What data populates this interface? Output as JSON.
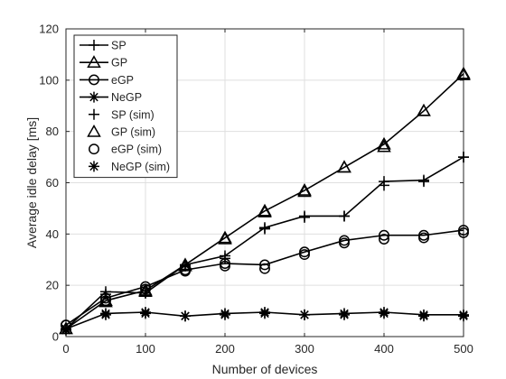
{
  "chart_data": {
    "type": "line",
    "xlabel": "Number of devices",
    "ylabel": "Average idle delay [ms]",
    "xlim": [
      0,
      500
    ],
    "ylim": [
      0,
      120
    ],
    "xticks": [
      0,
      100,
      200,
      300,
      400,
      500
    ],
    "yticks": [
      0,
      20,
      40,
      60,
      80,
      100,
      120
    ],
    "grid": true,
    "legend_position": "top-left",
    "x": [
      0,
      50,
      100,
      150,
      200,
      250,
      300,
      350,
      400,
      450,
      500
    ],
    "series": [
      {
        "name": "SP",
        "marker": "plus",
        "style": "line",
        "values": [
          3,
          17.5,
          17,
          28,
          31.5,
          42.5,
          47,
          47,
          60.5,
          61,
          70
        ]
      },
      {
        "name": "GP",
        "marker": "triangle",
        "style": "line",
        "values": [
          3,
          14,
          18,
          28,
          38.5,
          49,
          57,
          66,
          75,
          88,
          102.5
        ]
      },
      {
        "name": "eGP",
        "marker": "circle",
        "style": "line",
        "values": [
          4.5,
          15,
          19.5,
          26,
          28.5,
          28,
          33,
          37.5,
          39.5,
          39.5,
          41.5
        ]
      },
      {
        "name": "NeGP",
        "marker": "asterisk",
        "style": "line",
        "values": [
          3,
          9,
          9.5,
          8,
          9,
          9.5,
          8.5,
          9,
          9.5,
          8.5,
          8.5
        ]
      },
      {
        "name": "SP (sim)",
        "marker": "plus",
        "style": "markers",
        "values": [
          3,
          16.5,
          17,
          27.5,
          30.5,
          42,
          46.5,
          47,
          59,
          60.5,
          70
        ]
      },
      {
        "name": "GP (sim)",
        "marker": "triangle",
        "style": "markers",
        "values": [
          3,
          13.5,
          17.5,
          27.5,
          38,
          48.5,
          56.5,
          66,
          74,
          88,
          102
        ]
      },
      {
        "name": "eGP (sim)",
        "marker": "circle",
        "style": "markers",
        "values": [
          4.5,
          14,
          18.5,
          25.5,
          27.5,
          26.5,
          32,
          36.5,
          38,
          38.5,
          40.5
        ]
      },
      {
        "name": "NeGP (sim)",
        "marker": "asterisk",
        "style": "markers",
        "values": [
          2.5,
          8.5,
          9,
          8,
          8.5,
          9,
          8.5,
          8.5,
          9,
          8,
          8
        ]
      }
    ]
  }
}
